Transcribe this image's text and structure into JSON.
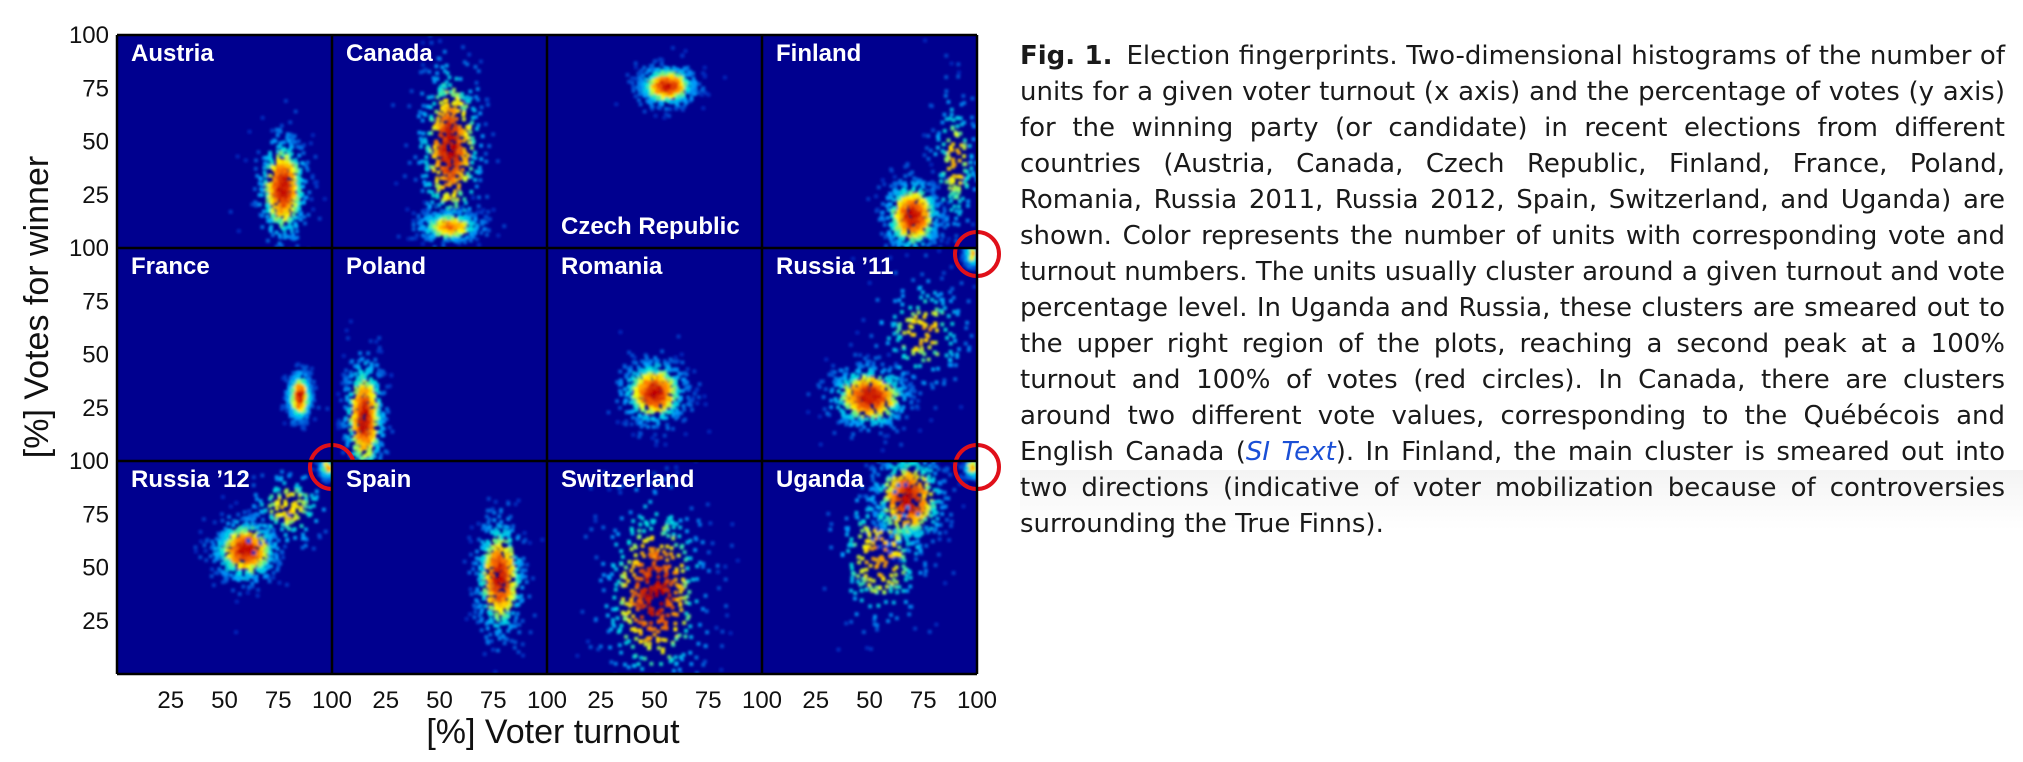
{
  "figure": {
    "ylabel": "[%] Votes for winner",
    "xlabel": "[%] Voter turnout",
    "y_ticks": [
      "100",
      "75",
      "50",
      "25"
    ],
    "x_ticks": [
      "25",
      "50",
      "75",
      "100"
    ],
    "colors": {
      "background": "#00008f",
      "heat_low": "#00a0ff",
      "heat_mid": "#ffff00",
      "heat_high": "#c00000",
      "grid_line": "#000000",
      "circle": "#e0101a",
      "panel_title": "#ffffff"
    }
  },
  "panels": [
    {
      "name": "Austria",
      "circled": false
    },
    {
      "name": "Canada",
      "circled": false
    },
    {
      "name": "Czech Republic",
      "circled": false
    },
    {
      "name": "Finland",
      "circled": false
    },
    {
      "name": "France",
      "circled": false
    },
    {
      "name": "Poland",
      "circled": false
    },
    {
      "name": "Romania",
      "circled": false
    },
    {
      "name": "Russia ’11",
      "circled": true
    },
    {
      "name": "Russia ’12",
      "circled": true
    },
    {
      "name": "Spain",
      "circled": false
    },
    {
      "name": "Switzerland",
      "circled": false
    },
    {
      "name": "Uganda",
      "circled": true
    }
  ],
  "chart_data": {
    "type": "heatmap",
    "xlabel": "[%] Voter turnout",
    "ylabel": "[%] Votes for winner",
    "xlim": [
      0,
      100
    ],
    "ylim": [
      0,
      100
    ],
    "grid": "4x3 small multiples",
    "series": [
      {
        "name": "Austria",
        "clusters": [
          {
            "x": 77,
            "y": 28,
            "sx": 6,
            "sy": 13,
            "w": 1
          }
        ]
      },
      {
        "name": "Canada",
        "clusters": [
          {
            "x": 55,
            "y": 47,
            "sx": 8,
            "sy": 22,
            "w": 1
          },
          {
            "x": 55,
            "y": 10,
            "sx": 8,
            "sy": 4,
            "w": 0.6
          }
        ]
      },
      {
        "name": "Czech Republic",
        "clusters": [
          {
            "x": 56,
            "y": 76,
            "sx": 7,
            "sy": 5,
            "w": 1
          }
        ]
      },
      {
        "name": "Finland",
        "clusters": [
          {
            "x": 70,
            "y": 15,
            "sx": 7,
            "sy": 9,
            "w": 1
          },
          {
            "x": 90,
            "y": 40,
            "sx": 6,
            "sy": 18,
            "w": 0.35
          }
        ]
      },
      {
        "name": "France",
        "clusters": [
          {
            "x": 85,
            "y": 30,
            "sx": 3,
            "sy": 6,
            "w": 1
          }
        ]
      },
      {
        "name": "Poland",
        "clusters": [
          {
            "x": 15,
            "y": 20,
            "sx": 5,
            "sy": 15,
            "w": 1
          }
        ]
      },
      {
        "name": "Romania",
        "clusters": [
          {
            "x": 50,
            "y": 32,
            "sx": 8,
            "sy": 8,
            "w": 1
          }
        ]
      },
      {
        "name": "Russia ’11",
        "clusters": [
          {
            "x": 50,
            "y": 30,
            "sx": 10,
            "sy": 8,
            "w": 1
          },
          {
            "x": 75,
            "y": 60,
            "sx": 12,
            "sy": 14,
            "w": 0.35
          },
          {
            "x": 98,
            "y": 97,
            "sx": 2,
            "sy": 3,
            "w": 0.45
          }
        ]
      },
      {
        "name": "Russia ’12",
        "clusters": [
          {
            "x": 60,
            "y": 58,
            "sx": 8,
            "sy": 8,
            "w": 1
          },
          {
            "x": 80,
            "y": 78,
            "sx": 10,
            "sy": 10,
            "w": 0.3
          },
          {
            "x": 98,
            "y": 97,
            "sx": 2,
            "sy": 3,
            "w": 0.45
          }
        ]
      },
      {
        "name": "Spain",
        "clusters": [
          {
            "x": 78,
            "y": 45,
            "sx": 6,
            "sy": 15,
            "w": 1
          }
        ]
      },
      {
        "name": "Switzerland",
        "clusters": [
          {
            "x": 50,
            "y": 38,
            "sx": 13,
            "sy": 25,
            "w": 1
          }
        ]
      },
      {
        "name": "Uganda",
        "clusters": [
          {
            "x": 68,
            "y": 82,
            "sx": 9,
            "sy": 12,
            "w": 1
          },
          {
            "x": 55,
            "y": 55,
            "sx": 12,
            "sy": 18,
            "w": 0.45
          },
          {
            "x": 98,
            "y": 97,
            "sx": 2,
            "sy": 3,
            "w": 0.45
          }
        ]
      }
    ]
  },
  "caption": {
    "label": "Fig. 1.",
    "text_before_link": "Election fingerprints. Two-dimensional histograms of the number of units for a given voter turnout (x axis) and the percentage of votes (y axis) for the winning party (or candidate) in recent elections from different countries (Austria, Canada, Czech Republic, Finland, France, Poland, Romania, Russia 2011, Russia 2012, Spain, Switzerland, and Uganda) are shown. Color represents the number of units with corresponding vote and turnout numbers. The units usually cluster around a given turnout and vote percentage level. In Uganda and Russia, these clusters are smeared out to the upper right region of the plots, reaching a second peak at a 100% turnout and 100% of votes (red circles). In Canada, there are clusters around two different vote values, corresponding to the Québécois and English Canada (",
    "link_text": "SI Text",
    "text_after_link": "). In Finland, the main cluster is smeared out into two directions (indicative of voter mobilization because of controversies surrounding the True Finns)."
  }
}
